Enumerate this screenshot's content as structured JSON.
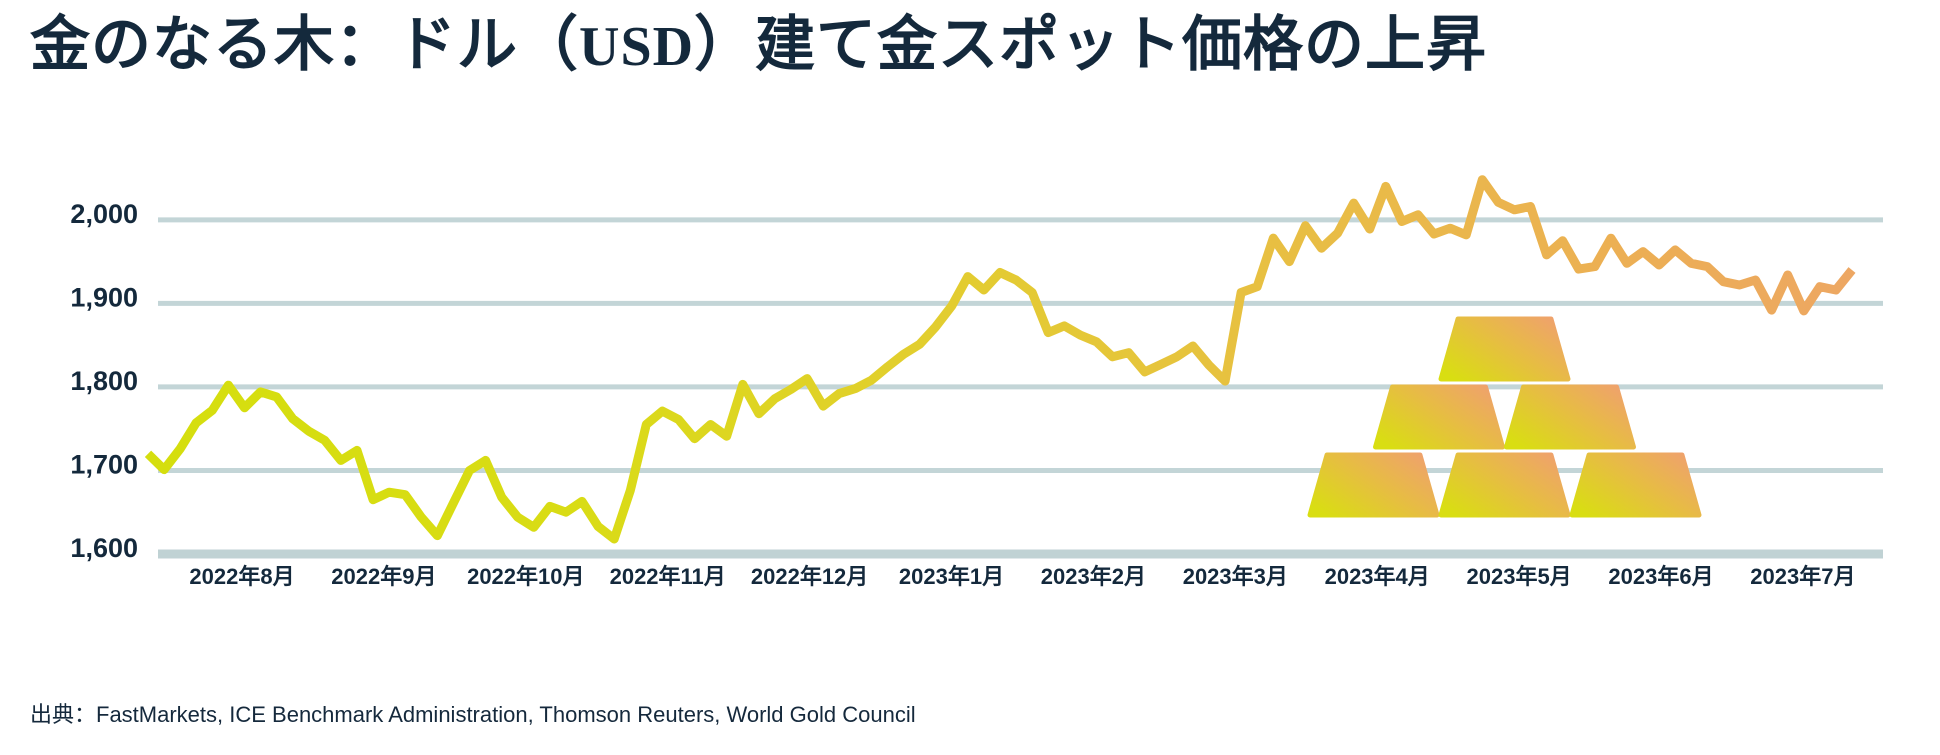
{
  "title": {
    "pre": "金のなる木：ドル（",
    "currency": "USD",
    "post": "）建て金スポット価格の上昇"
  },
  "source": "出典：FastMarkets, ICE Benchmark Administration, Thomson Reuters, World Gold Council",
  "colors": {
    "text": "#14293C",
    "gridline": "#C3D5D7",
    "baseline": "#C0D2D4",
    "line_gradient": [
      "#D5DE0E",
      "#D9DC15",
      "#E2CE2E",
      "#E6C43C",
      "#EAB84B",
      "#ECAE55",
      "#EDA763"
    ],
    "bar_gradient_start": "#D9DE12",
    "bar_gradient_end": "#EFA26C",
    "background": "#FFFFFF"
  },
  "chart_data": {
    "type": "line",
    "title": "金のなる木：ドル（USD）建て金スポット価格の上昇",
    "xlabel": "",
    "ylabel": "",
    "ylim": [
      1600,
      2060
    ],
    "grid": true,
    "legend": "none",
    "y_ticks": [
      2000,
      1900,
      1800,
      1700,
      1600
    ],
    "y_tick_labels": [
      "2,000",
      "1,900",
      "1,800",
      "1,700",
      "1,600"
    ],
    "x_tick_labels": [
      "2022年8月",
      "2022年9月",
      "2022年10月",
      "2022年11月",
      "2022年12月",
      "2023年1月",
      "2023年2月",
      "2023年3月",
      "2023年4月",
      "2023年5月",
      "2023年6月",
      "2023年7月"
    ],
    "values": [
      1720,
      1701,
      1726,
      1757,
      1772,
      1802,
      1775,
      1794,
      1788,
      1762,
      1747,
      1736,
      1712,
      1724,
      1665,
      1674,
      1671,
      1644,
      1622,
      1661,
      1700,
      1712,
      1668,
      1644,
      1632,
      1657,
      1650,
      1663,
      1633,
      1618,
      1676,
      1755,
      1771,
      1761,
      1738,
      1755,
      1741,
      1803,
      1768,
      1786,
      1797,
      1810,
      1777,
      1792,
      1798,
      1808,
      1824,
      1839,
      1851,
      1872,
      1897,
      1932,
      1916,
      1937,
      1928,
      1913,
      1865,
      1873,
      1862,
      1854,
      1836,
      1841,
      1818,
      1827,
      1836,
      1849,
      1826,
      1807,
      1913,
      1920,
      1978,
      1950,
      1993,
      1966,
      1984,
      2020,
      1989,
      2040,
      1998,
      2006,
      1983,
      1990,
      1982,
      2048,
      2021,
      2012,
      2016,
      1958,
      1975,
      1941,
      1944,
      1978,
      1948,
      1962,
      1946,
      1964,
      1948,
      1944,
      1926,
      1922,
      1928,
      1892,
      1934,
      1891,
      1920,
      1916,
      1940
    ],
    "annotations": {
      "gold_bar_pyramid": {
        "rows_top_to_bottom": [
          1,
          2,
          3
        ]
      }
    }
  }
}
